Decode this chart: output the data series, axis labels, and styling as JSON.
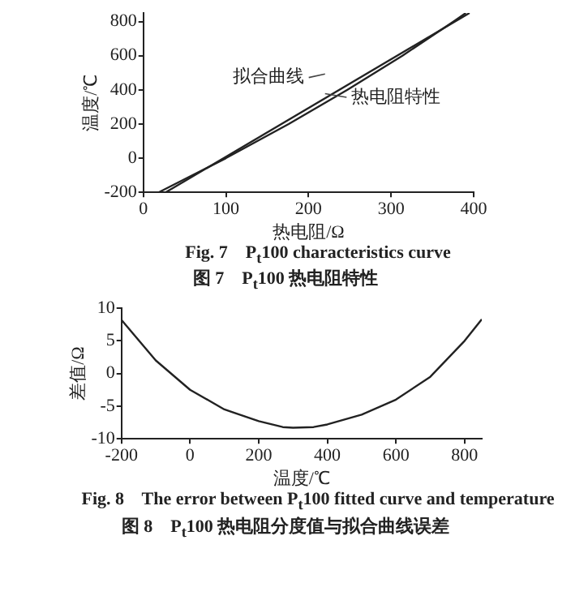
{
  "chart_data": [
    {
      "type": "line",
      "xlabel": "热电阻/Ω",
      "ylabel": "温度/℃",
      "xlim": [
        0,
        400
      ],
      "xticks": [
        0,
        100,
        200,
        300,
        400
      ],
      "ylim": [
        -200,
        850
      ],
      "yticks": [
        -200,
        0,
        200,
        400,
        600,
        800
      ],
      "grid": false,
      "legend": false,
      "marker": "none",
      "line_style": "solid",
      "series": [
        {
          "name": "拟合曲线",
          "color": "#222222",
          "x": [
            27,
            395
          ],
          "values": [
            -200,
            850
          ]
        },
        {
          "name": "热电阻特性",
          "color": "#222222",
          "x": [
            18.5,
            100,
            175.9,
            247.1,
            313.7,
            375.7,
            390.5
          ],
          "values": [
            -200,
            0,
            200,
            400,
            600,
            800,
            850
          ]
        }
      ],
      "annotations": [
        "Fig. 7    P$_{t}$100 characteristics curve",
        "图 7    P$_{t}$100 热电阻特性"
      ]
    },
    {
      "type": "line",
      "xlabel": "温度/℃",
      "ylabel": "差值/Ω",
      "xlim": [
        -200,
        850
      ],
      "xticks": [
        -200,
        0,
        200,
        400,
        600,
        800
      ],
      "ylim": [
        -10,
        10
      ],
      "yticks": [
        -10,
        -5,
        0,
        5,
        10
      ],
      "grid": false,
      "legend": false,
      "marker": "none",
      "line_style": "solid",
      "series": [
        {
          "color": "#222222",
          "x": [
            -200,
            -100,
            0,
            100,
            200,
            270,
            300,
            360,
            400,
            500,
            600,
            700,
            800,
            850
          ],
          "values": [
            8.2,
            2,
            -2.5,
            -5.5,
            -7.3,
            -8.2,
            -8.3,
            -8.2,
            -7.8,
            -6.3,
            -4,
            -0.5,
            5,
            8.3
          ]
        }
      ],
      "annotations": [
        "Fig. 8    The error between P$_{t}$100 fitted curve and temperature",
        "图 8    P$_{t}$100 热电阻分度值与拟合曲线误差"
      ]
    }
  ]
}
